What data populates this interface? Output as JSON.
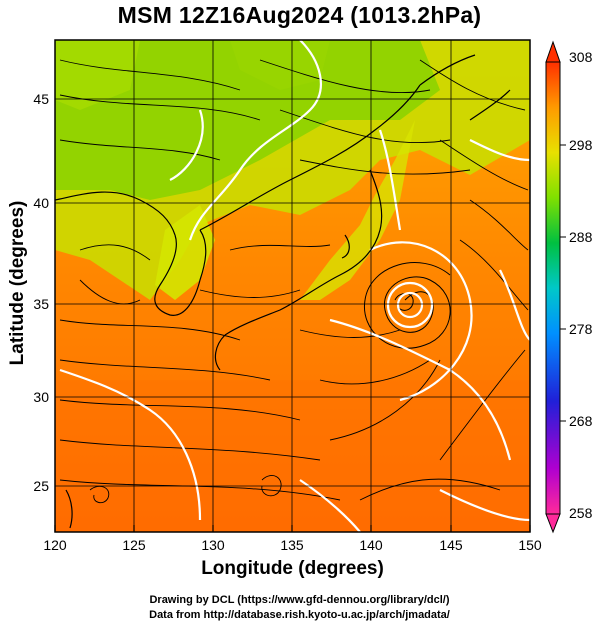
{
  "title": "MSM 12Z16Aug2024 (1013.2hPa)",
  "axes": {
    "xlabel": "Longitude (degrees)",
    "ylabel": "Latitude  (degrees)",
    "xticks": [
      "120",
      "125",
      "130",
      "135",
      "140",
      "145",
      "150"
    ],
    "yticks": [
      "25",
      "30",
      "35",
      "40",
      "45"
    ],
    "xrange": [
      120,
      150
    ],
    "yrange": [
      22.5,
      47.5
    ]
  },
  "colorbar": {
    "ticks": [
      "308",
      "298",
      "288",
      "278",
      "268",
      "258"
    ],
    "range": [
      258,
      308
    ],
    "colors": [
      "#ff2a9a",
      "#b000d0",
      "#2020d8",
      "#0080ff",
      "#00c8c8",
      "#00c040",
      "#80e000",
      "#e8e000",
      "#ffa000",
      "#ff5000",
      "#ff2000"
    ]
  },
  "credits": {
    "line1": "Drawing by DCL (https://www.gfd-dennou.org/library/dcl/)",
    "line2": "Data from http://database.rish.kyoto-u.ac.jp/arch/jmadata/"
  },
  "map_features": {
    "typhoon_center": [
      142.2,
      34.9
    ],
    "grid": true
  }
}
